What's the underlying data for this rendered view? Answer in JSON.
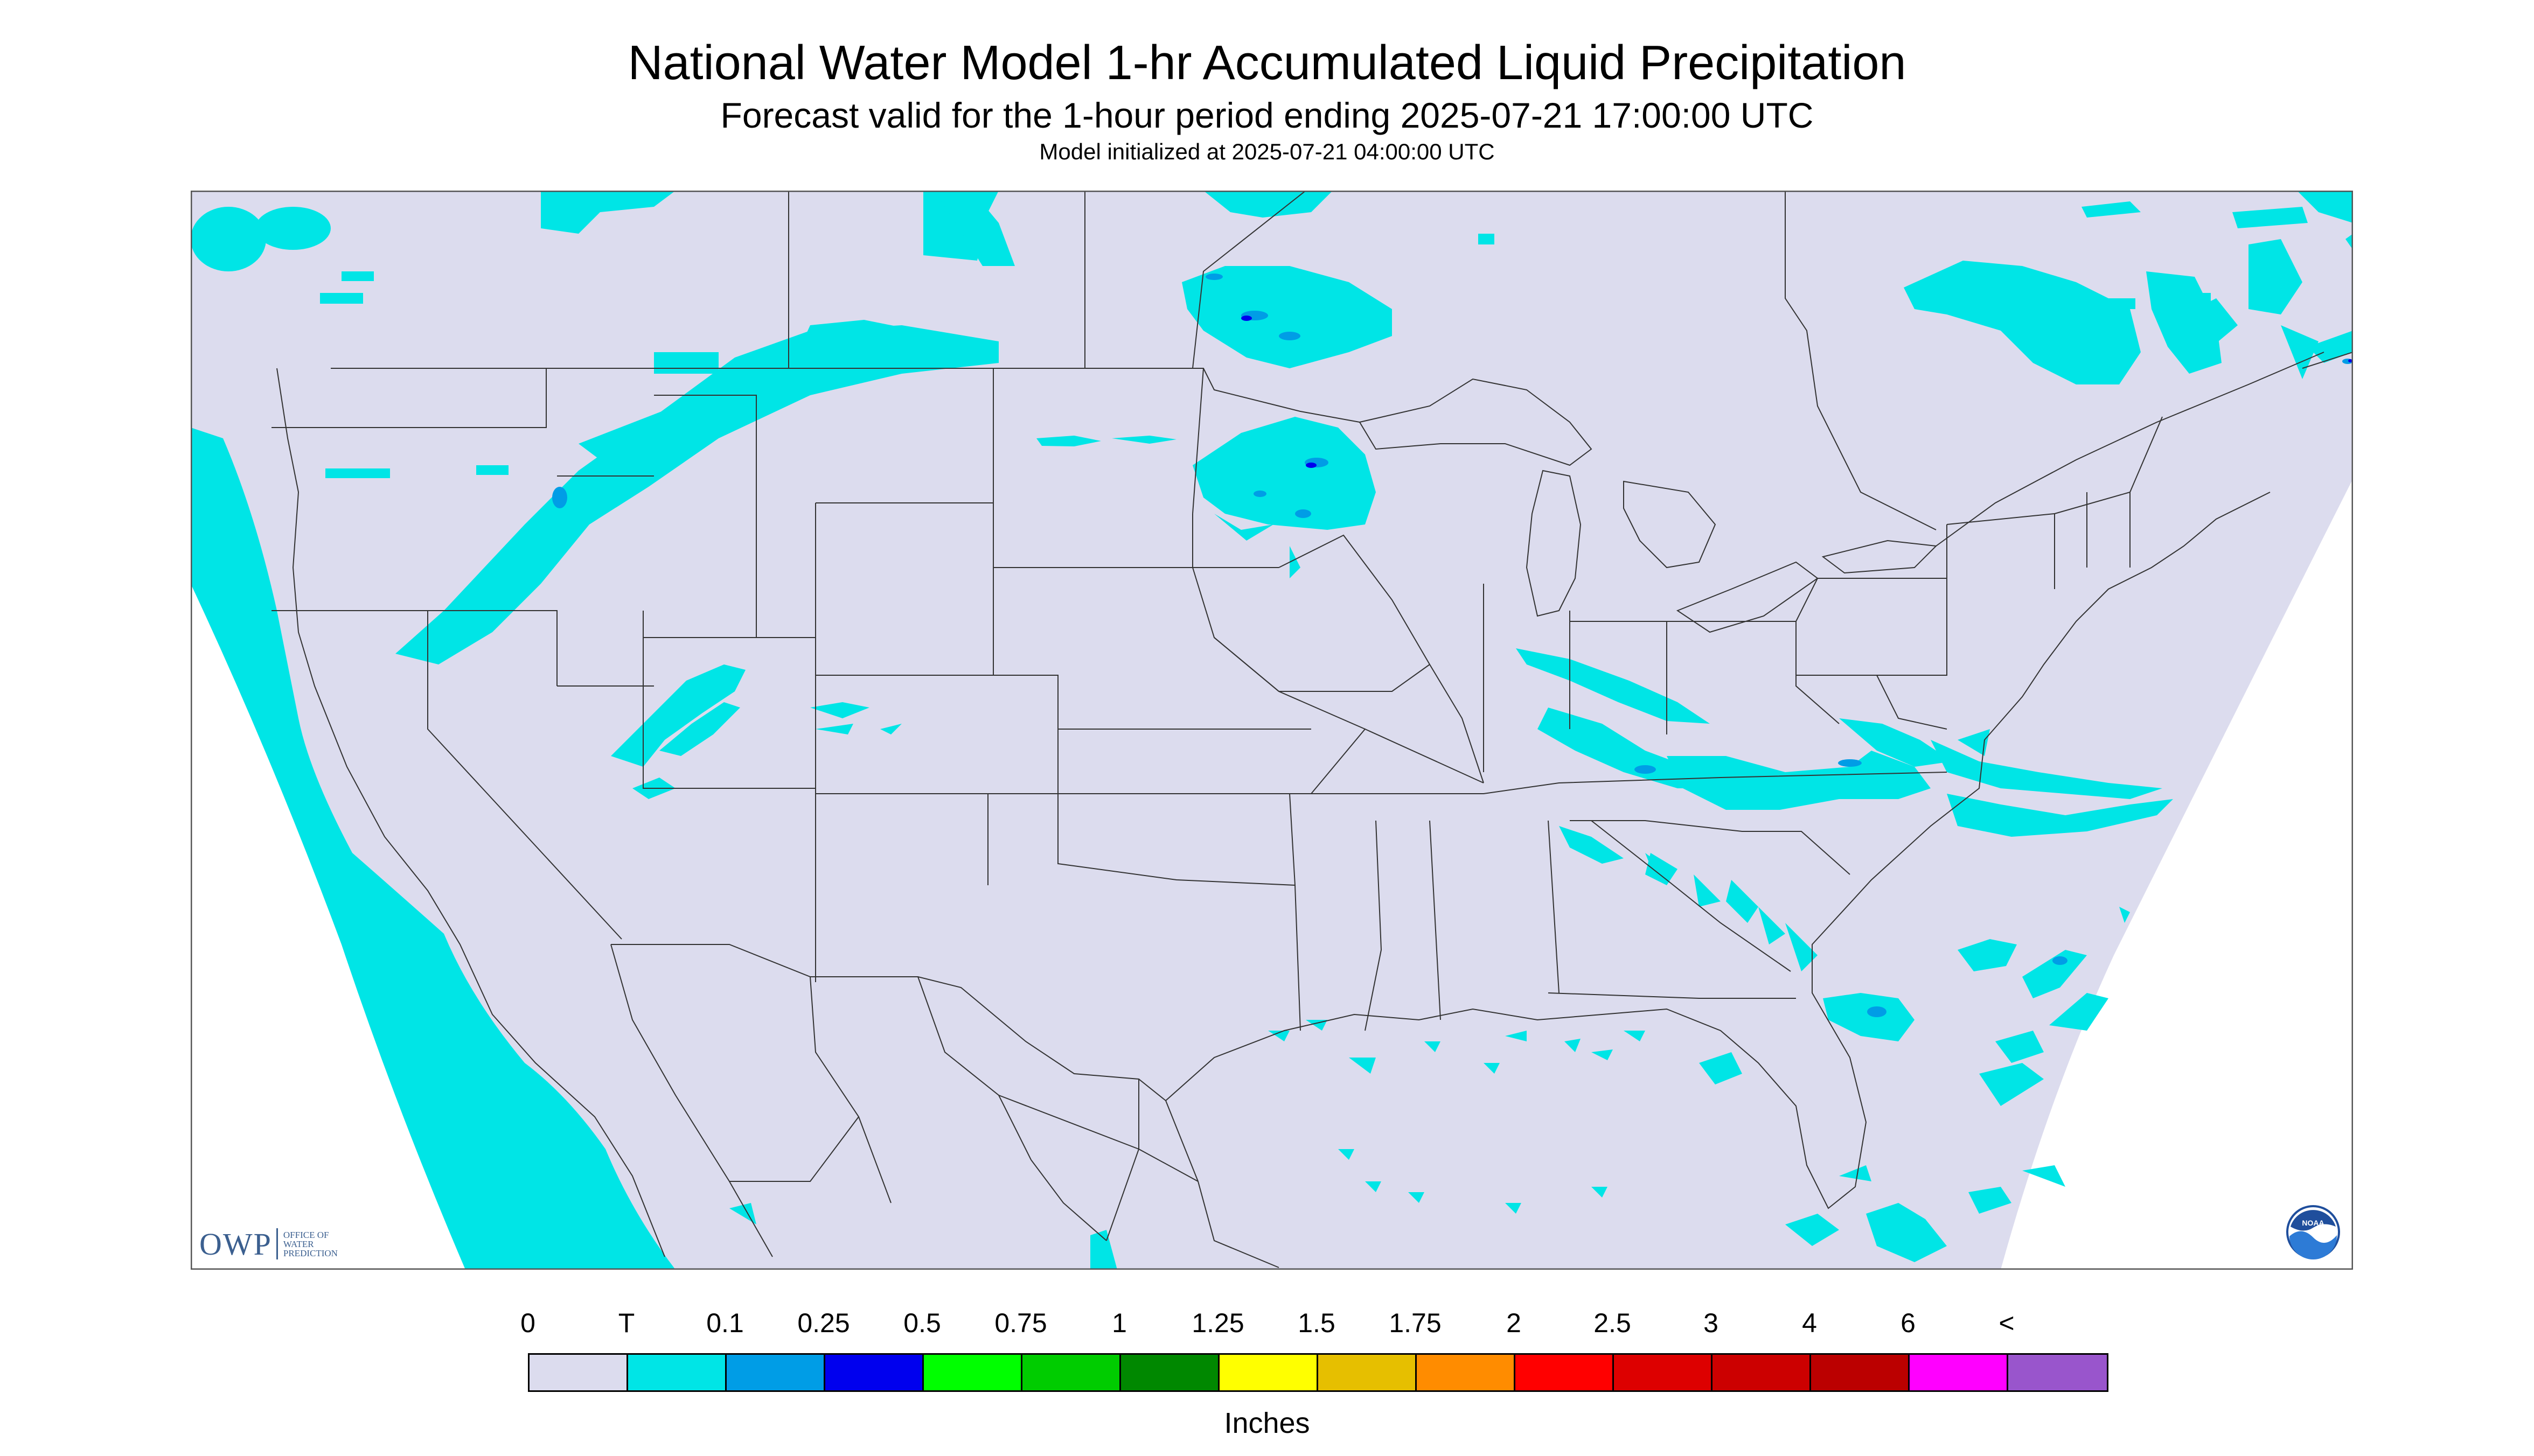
{
  "title": "National Water Model 1-hr Accumulated Liquid Precipitation",
  "subtitle": "Forecast valid for the 1-hour period ending 2025-07-21 17:00:00 UTC",
  "init_line": "Model initialized at 2025-07-21 04:00:00 UTC",
  "owp_logo": {
    "text": "OWP",
    "line1": "OFFICE OF",
    "line2": "WATER",
    "line3": "PREDICTION",
    "color": "#3b5f8f"
  },
  "noaa_logo": {
    "text": "NOAA",
    "icon": "noaa-logo-icon"
  },
  "map": {
    "background": "#dcdcee",
    "outside_color": "#ffffff",
    "precip_light_color": "#00e5e6",
    "precip_moderate_color": "#009de6",
    "precip_heavy_color": "#0000ee",
    "boundary_color": "#333333"
  },
  "legend": {
    "labels": [
      "0",
      "T",
      "0.1",
      "0.25",
      "0.5",
      "0.75",
      "1",
      "1.25",
      "1.5",
      "1.75",
      "2",
      "2.5",
      "3",
      "4",
      "6",
      "<"
    ],
    "colors": [
      "#dcdcee",
      "#00e5e6",
      "#009de6",
      "#0000ee",
      "#00ff00",
      "#00cc00",
      "#008800",
      "#ffff00",
      "#e6bf00",
      "#ff8c00",
      "#ff0000",
      "#dd0000",
      "#cc0000",
      "#bb0000",
      "#ff00ff",
      "#9955cc"
    ],
    "units": "Inches"
  }
}
